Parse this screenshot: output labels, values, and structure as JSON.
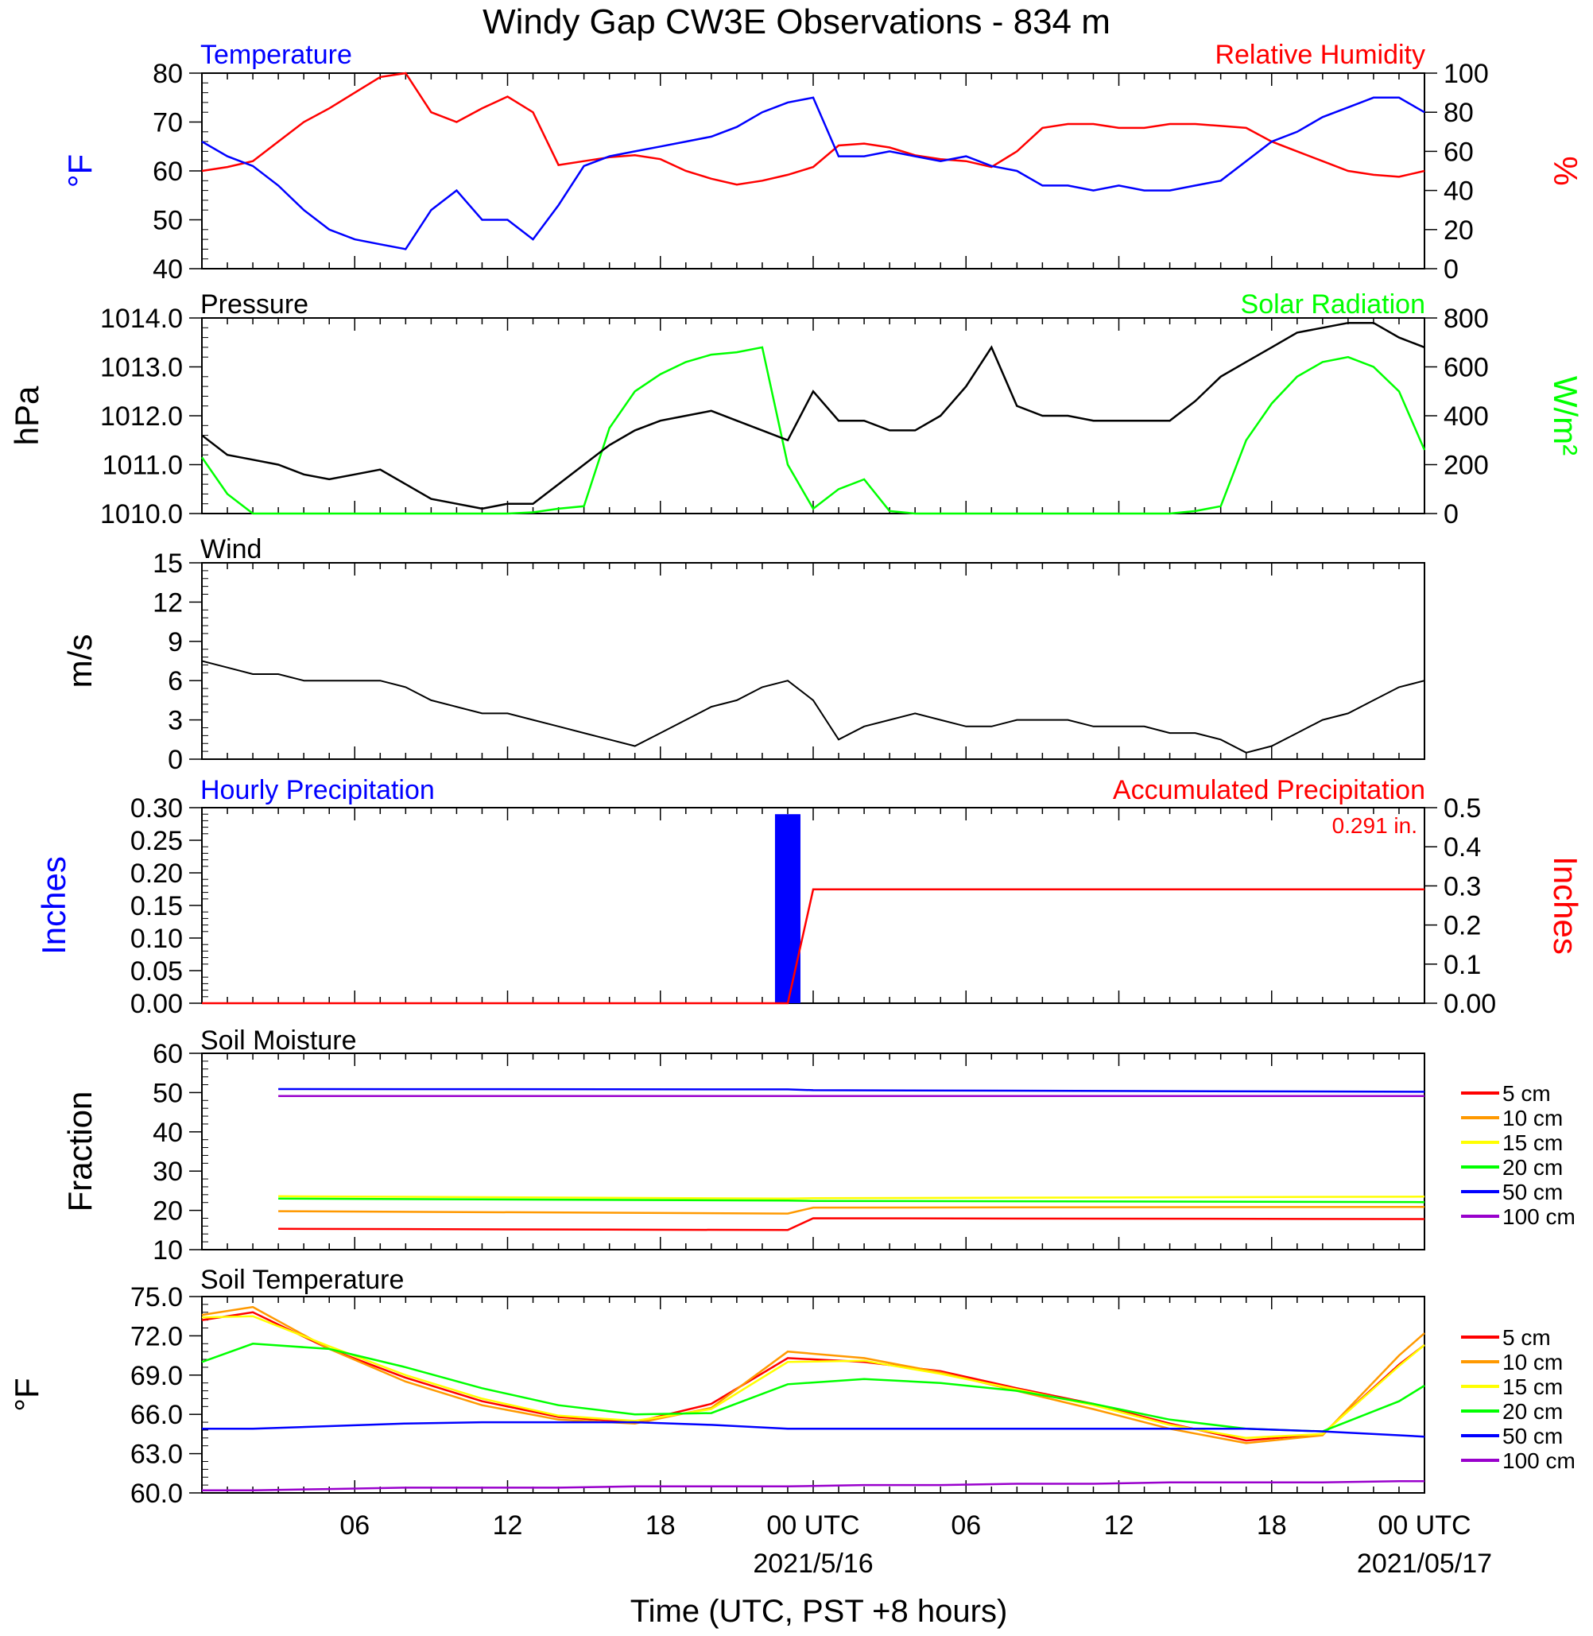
{
  "figure": {
    "title": "Windy Gap CW3E Observations - 834 m",
    "x_axis_title": "Time (UTC, PST +8 hours)",
    "x_tick_labels": [
      "06",
      "12",
      "18",
      "00 UTC",
      "06",
      "12",
      "18",
      "00 UTC"
    ],
    "x_date_labels": [
      "2021/5/16",
      "2021/05/17"
    ]
  },
  "panels": {
    "temperature": {
      "left_title": "Temperature",
      "right_title": "Relative Humidity",
      "left_unit": "°F",
      "right_unit": "%",
      "left_ticks": [
        "40",
        "50",
        "60",
        "70",
        "80"
      ],
      "right_ticks": [
        "0",
        "20",
        "40",
        "60",
        "80",
        "100"
      ]
    },
    "pressure": {
      "left_title": "Pressure",
      "right_title": "Solar Radiation",
      "left_unit": "hPa",
      "right_unit": "W/m²",
      "left_ticks": [
        "1010.0",
        "1011.0",
        "1012.0",
        "1013.0",
        "1014.0"
      ],
      "right_ticks": [
        "0",
        "200",
        "400",
        "600",
        "800"
      ]
    },
    "wind": {
      "left_title": "Wind",
      "left_unit": "m/s",
      "left_ticks": [
        "0",
        "3",
        "6",
        "9",
        "12",
        "15"
      ]
    },
    "precip": {
      "left_title": "Hourly Precipitation",
      "right_title": "Accumulated Precipitation",
      "total_label": "0.291 in.",
      "left_unit": "Inches",
      "right_unit": "Inches",
      "left_ticks": [
        "0.00",
        "0.05",
        "0.10",
        "0.15",
        "0.20",
        "0.25",
        "0.30"
      ],
      "right_ticks": [
        "0.00",
        "0.1",
        "0.2",
        "0.3",
        "0.4",
        "0.5"
      ]
    },
    "soil_moisture": {
      "left_title": "Soil Moisture",
      "left_unit": "Fraction",
      "left_ticks": [
        "10",
        "20",
        "30",
        "40",
        "50",
        "60"
      ],
      "legend": [
        "5 cm",
        "10 cm",
        "15 cm",
        "20 cm",
        "50 cm",
        "100 cm"
      ]
    },
    "soil_temperature": {
      "left_title": "Soil Temperature",
      "left_unit": "°F",
      "left_ticks": [
        "60.0",
        "63.0",
        "66.0",
        "69.0",
        "72.0",
        "75.0"
      ],
      "legend": [
        "5 cm",
        "10 cm",
        "15 cm",
        "20 cm",
        "50 cm",
        "100 cm"
      ]
    }
  },
  "colors": {
    "temperature": "#0000ff",
    "relative_humidity": "#ff0000",
    "pressure": "#000000",
    "solar_radiation": "#00ff00",
    "depths": [
      "#ff0000",
      "#ff9900",
      "#ffff00",
      "#00ff00",
      "#0000ff",
      "#9900cc"
    ]
  },
  "chart_data": [
    {
      "type": "line",
      "title": "Temperature / Relative Humidity",
      "x": [
        1,
        2,
        3,
        4,
        5,
        6,
        7,
        8,
        9,
        10,
        11,
        12,
        13,
        14,
        15,
        16,
        17,
        18,
        19,
        20,
        21,
        22,
        23,
        24,
        25,
        26,
        27,
        28,
        29,
        30,
        31,
        32,
        33,
        34,
        35,
        36,
        37,
        38,
        39,
        40,
        41,
        42,
        43,
        44,
        45,
        46,
        47,
        48,
        49
      ],
      "x_unit": "hours since 2021/5/15 00 UTC",
      "ylim_left": [
        40,
        80
      ],
      "ylim_right": [
        0,
        100
      ],
      "series": [
        {
          "name": "Temperature",
          "axis": "left",
          "values": [
            66,
            63,
            61,
            57,
            52,
            48,
            46,
            45,
            44,
            52,
            56,
            50,
            50,
            46,
            53,
            61,
            63,
            64,
            65,
            66,
            67,
            69,
            72,
            74,
            75,
            63,
            63,
            64,
            63,
            62,
            63,
            61,
            60,
            57,
            57,
            56,
            57,
            56,
            56,
            57,
            58,
            62,
            66,
            68,
            71,
            73,
            75,
            75,
            72
          ]
        },
        {
          "name": "Relative Humidity",
          "axis": "right",
          "values": [
            50,
            52,
            55,
            65,
            75,
            82,
            90,
            98,
            100,
            80,
            75,
            82,
            88,
            80,
            53,
            55,
            57,
            58,
            56,
            50,
            46,
            43,
            45,
            48,
            52,
            63,
            64,
            62,
            58,
            56,
            55,
            52,
            60,
            72,
            74,
            74,
            72,
            72,
            74,
            74,
            73,
            72,
            65,
            60,
            55,
            50,
            48,
            47,
            50
          ]
        }
      ]
    },
    {
      "type": "line",
      "title": "Pressure / Solar Radiation",
      "x": [
        1,
        2,
        3,
        4,
        5,
        6,
        7,
        8,
        9,
        10,
        11,
        12,
        13,
        14,
        15,
        16,
        17,
        18,
        19,
        20,
        21,
        22,
        23,
        24,
        25,
        26,
        27,
        28,
        29,
        30,
        31,
        32,
        33,
        34,
        35,
        36,
        37,
        38,
        39,
        40,
        41,
        42,
        43,
        44,
        45,
        46,
        47,
        48,
        49
      ],
      "x_unit": "hours since 2021/5/15 00 UTC",
      "ylim_left": [
        1010.0,
        1014.0
      ],
      "ylim_right": [
        0,
        800
      ],
      "series": [
        {
          "name": "Pressure",
          "axis": "left",
          "values": [
            1011.6,
            1011.2,
            1011.1,
            1011.0,
            1010.8,
            1010.7,
            1010.8,
            1010.9,
            1010.6,
            1010.3,
            1010.2,
            1010.1,
            1010.2,
            1010.2,
            1010.6,
            1011.0,
            1011.4,
            1011.7,
            1011.9,
            1012.0,
            1012.1,
            1011.9,
            1011.7,
            1011.5,
            1012.5,
            1011.9,
            1011.9,
            1011.7,
            1011.7,
            1012.0,
            1012.6,
            1013.4,
            1012.2,
            1012.0,
            1012.0,
            1011.9,
            1011.9,
            1011.9,
            1011.9,
            1012.3,
            1012.8,
            1013.1,
            1013.4,
            1013.7,
            1013.8,
            1013.9,
            1013.9,
            1013.6,
            1013.4
          ]
        },
        {
          "name": "Solar Radiation",
          "axis": "right",
          "values": [
            230,
            80,
            0,
            0,
            0,
            0,
            0,
            0,
            0,
            0,
            0,
            0,
            0,
            5,
            20,
            30,
            350,
            500,
            570,
            620,
            650,
            660,
            680,
            200,
            20,
            100,
            140,
            10,
            0,
            0,
            0,
            0,
            0,
            0,
            0,
            0,
            0,
            0,
            0,
            10,
            30,
            300,
            450,
            560,
            620,
            640,
            600,
            500,
            260
          ]
        }
      ]
    },
    {
      "type": "line",
      "title": "Wind",
      "x": [
        1,
        2,
        3,
        4,
        5,
        6,
        7,
        8,
        9,
        10,
        11,
        12,
        13,
        14,
        15,
        16,
        17,
        18,
        19,
        20,
        21,
        22,
        23,
        24,
        25,
        26,
        27,
        28,
        29,
        30,
        31,
        32,
        33,
        34,
        35,
        36,
        37,
        38,
        39,
        40,
        41,
        42,
        43,
        44,
        45,
        46,
        47,
        48,
        49
      ],
      "x_unit": "hours since 2021/5/15 00 UTC",
      "ylabel": "m/s",
      "ylim": [
        0,
        15
      ],
      "series": [
        {
          "name": "Wind",
          "values": [
            7.5,
            7.0,
            6.5,
            6.5,
            6.0,
            6.0,
            6.0,
            6.0,
            5.5,
            4.5,
            4.0,
            3.5,
            3.5,
            3.0,
            2.5,
            2.0,
            1.5,
            1.0,
            2.0,
            3.0,
            4.0,
            4.5,
            5.5,
            6.0,
            4.5,
            1.5,
            2.5,
            3.0,
            3.5,
            3.0,
            2.5,
            2.5,
            3.0,
            3.0,
            3.0,
            2.5,
            2.5,
            2.5,
            2.0,
            2.0,
            1.5,
            0.5,
            1.0,
            2.0,
            3.0,
            3.5,
            4.5,
            5.5,
            6.0
          ]
        }
      ]
    },
    {
      "type": "bar",
      "title": "Hourly Precipitation / Accumulated Precipitation",
      "x": [
        24
      ],
      "x_unit": "hours since 2021/5/15 00 UTC",
      "ylim_left": [
        0,
        0.3
      ],
      "ylim_right": [
        0,
        0.5
      ],
      "series": [
        {
          "name": "Hourly Precipitation",
          "axis": "left",
          "values": [
            0.29
          ]
        },
        {
          "name": "Accumulated Precipitation",
          "axis": "right",
          "type": "line",
          "x": [
            1,
            24,
            25,
            49
          ],
          "values": [
            0,
            0,
            0.291,
            0.291
          ]
        }
      ]
    },
    {
      "type": "line",
      "title": "Soil Moisture",
      "x": [
        4,
        24,
        25,
        49
      ],
      "x_unit": "hours since 2021/5/15 00 UTC",
      "ylabel": "Fraction",
      "ylim": [
        10,
        60
      ],
      "series": [
        {
          "name": "5 cm",
          "values": [
            15.3,
            15.0,
            18.0,
            17.8
          ]
        },
        {
          "name": "10 cm",
          "values": [
            19.8,
            19.2,
            20.7,
            20.9
          ]
        },
        {
          "name": "15 cm",
          "values": [
            23.6,
            23.0,
            23.1,
            23.5
          ]
        },
        {
          "name": "20 cm",
          "values": [
            23.0,
            22.5,
            22.4,
            22.1
          ]
        },
        {
          "name": "50 cm",
          "values": [
            50.9,
            50.8,
            50.6,
            50.2
          ]
        },
        {
          "name": "100 cm",
          "values": [
            49.1,
            49.1,
            49.1,
            49.1
          ]
        }
      ]
    },
    {
      "type": "line",
      "title": "Soil Temperature",
      "x": [
        1,
        3,
        6,
        9,
        12,
        15,
        18,
        21,
        24,
        27,
        30,
        33,
        36,
        39,
        42,
        45,
        48,
        49
      ],
      "x_unit": "hours since 2021/5/15 00 UTC",
      "ylabel": "°F",
      "ylim": [
        60.0,
        75.0
      ],
      "series": [
        {
          "name": "5 cm",
          "values": [
            73.2,
            73.8,
            71.0,
            68.8,
            67.0,
            65.8,
            65.4,
            66.8,
            70.3,
            70.0,
            69.3,
            68.0,
            66.8,
            65.3,
            64.0,
            64.5,
            69.8,
            71.3
          ]
        },
        {
          "name": "10 cm",
          "values": [
            73.6,
            74.2,
            71.0,
            68.5,
            66.7,
            65.6,
            65.3,
            66.5,
            70.8,
            70.3,
            69.2,
            67.8,
            66.4,
            64.9,
            63.8,
            64.4,
            70.5,
            72.2
          ]
        },
        {
          "name": "15 cm",
          "values": [
            73.4,
            73.5,
            71.2,
            69.0,
            67.2,
            65.9,
            65.5,
            66.4,
            70.0,
            70.1,
            69.1,
            67.9,
            66.7,
            65.2,
            64.2,
            64.5,
            69.7,
            71.3
          ]
        },
        {
          "name": "20 cm",
          "values": [
            70.0,
            71.4,
            71.0,
            69.6,
            68.0,
            66.7,
            66.0,
            66.1,
            68.3,
            68.7,
            68.4,
            67.8,
            66.8,
            65.6,
            64.9,
            64.7,
            67.0,
            68.2
          ]
        },
        {
          "name": "50 cm",
          "values": [
            64.9,
            64.9,
            65.1,
            65.3,
            65.4,
            65.4,
            65.4,
            65.2,
            64.9,
            64.9,
            64.9,
            64.9,
            64.9,
            64.9,
            64.9,
            64.7,
            64.4,
            64.3
          ]
        },
        {
          "name": "100 cm",
          "values": [
            60.2,
            60.2,
            60.3,
            60.4,
            60.4,
            60.4,
            60.5,
            60.5,
            60.5,
            60.6,
            60.6,
            60.7,
            60.7,
            60.8,
            60.8,
            60.8,
            60.9,
            60.9
          ]
        }
      ]
    }
  ]
}
